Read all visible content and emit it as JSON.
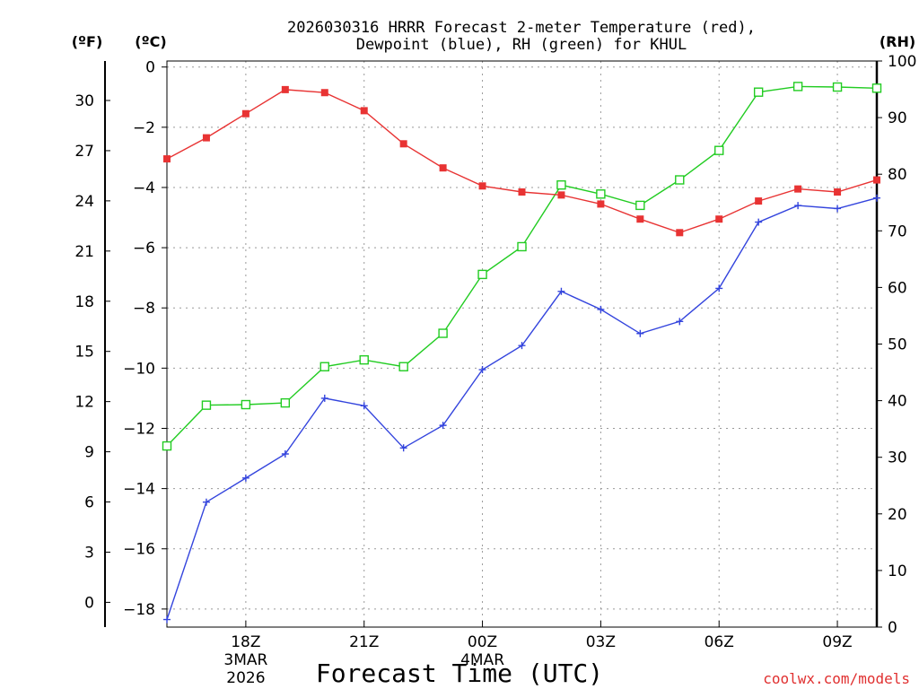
{
  "chart_data": {
    "type": "line",
    "title_line1": "2026030316 HRRR Forecast 2-meter Temperature (red),",
    "title_line2": "Dewpoint (blue), RH (green) for KHUL",
    "xlabel": "Forecast Time (UTC)",
    "ylabel_f": "(ºF)",
    "ylabel_c": "(ºC)",
    "ylabel_rh": "(RH)",
    "credit": "coolwx.com/models",
    "x_hours": [
      16,
      17,
      18,
      19,
      20,
      21,
      22,
      23,
      24,
      25,
      26,
      27,
      28,
      29,
      30,
      31,
      32,
      33,
      34
    ],
    "ylim_c": [
      -18.6,
      0.2
    ],
    "ylim_rh": [
      0,
      100
    ],
    "c_ticks": [
      "0",
      "−2",
      "−4",
      "−6",
      "−8",
      "−10",
      "−12",
      "−14",
      "−16",
      "−18"
    ],
    "c_tick_values": [
      0,
      -2,
      -4,
      -6,
      -8,
      -10,
      -12,
      -14,
      -16,
      -18
    ],
    "f_ticks": [
      "30",
      "27",
      "24",
      "21",
      "18",
      "15",
      "12",
      "9",
      "6",
      "3",
      "0"
    ],
    "f_tick_values": [
      30,
      27,
      24,
      21,
      18,
      15,
      12,
      9,
      6,
      3,
      0
    ],
    "rh_ticks": [
      "100",
      "90",
      "80",
      "70",
      "60",
      "50",
      "40",
      "30",
      "20",
      "10",
      "0"
    ],
    "rh_tick_values": [
      100,
      90,
      80,
      70,
      60,
      50,
      40,
      30,
      20,
      10,
      0
    ],
    "x_ticks": [
      {
        "hour": 18,
        "label": "18Z",
        "sub1": "3MAR",
        "sub2": "2026"
      },
      {
        "hour": 21,
        "label": "21Z",
        "sub1": "",
        "sub2": ""
      },
      {
        "hour": 24,
        "label": "00Z",
        "sub1": "4MAR",
        "sub2": ""
      },
      {
        "hour": 27,
        "label": "03Z",
        "sub1": "",
        "sub2": ""
      },
      {
        "hour": 30,
        "label": "06Z",
        "sub1": "",
        "sub2": ""
      },
      {
        "hour": 33,
        "label": "09Z",
        "sub1": "",
        "sub2": ""
      }
    ],
    "series": [
      {
        "name": "Temperature",
        "units": "C",
        "color": "#e83333",
        "marker": "filled-square",
        "values": [
          -3.05,
          -2.35,
          -1.55,
          -0.75,
          -0.85,
          -1.45,
          -2.55,
          -3.35,
          -3.95,
          -4.15,
          -4.25,
          -4.55,
          -5.05,
          -5.5,
          -5.05,
          -4.45,
          -4.05,
          -4.15,
          -3.75
        ]
      },
      {
        "name": "Dewpoint",
        "units": "C",
        "color": "#3344dd",
        "marker": "plus",
        "values": [
          -18.35,
          -14.45,
          -13.65,
          -12.85,
          -11.0,
          -11.25,
          -12.65,
          -11.9,
          -10.05,
          -9.25,
          -7.45,
          -8.05,
          -8.85,
          -8.45,
          -7.35,
          -5.15,
          -4.6,
          -4.7,
          -4.35
        ]
      },
      {
        "name": "RH",
        "units": "%",
        "color": "#22cc22",
        "marker": "open-square",
        "values": [
          32,
          39.2,
          39.3,
          39.6,
          46,
          47.2,
          46,
          51.9,
          62.3,
          67.2,
          78.1,
          76.5,
          74.5,
          79,
          84.2,
          94.5,
          95.5,
          95.4,
          95.2
        ]
      }
    ]
  }
}
